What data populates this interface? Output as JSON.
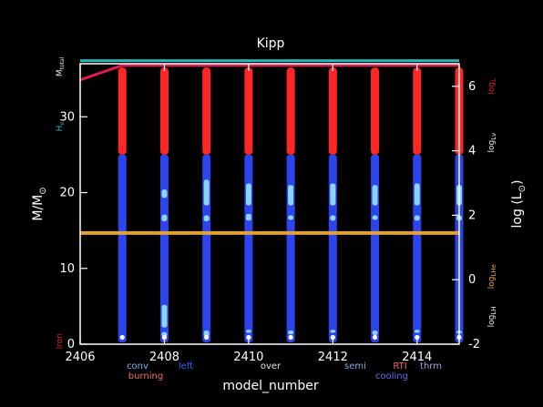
{
  "chart_data": {
    "type": "area",
    "title": "Kipp",
    "xlabel": "model_number",
    "ylabel_left": "M/M",
    "ylabel_left_sub": "⊙",
    "ylabel_right": "log (L",
    "ylabel_right_sub": "⊙",
    "ylabel_right_end": ")",
    "xlim": [
      2406,
      2415
    ],
    "ylim_left": [
      0,
      37
    ],
    "ylim_right": [
      -2,
      6.7
    ],
    "x_ticks": [
      "2406",
      "2408",
      "2410",
      "2412",
      "2414"
    ],
    "y_left_ticks": [
      "0",
      "10",
      "20",
      "30"
    ],
    "y_right_ticks": [
      "-2",
      "0",
      "2",
      "4",
      "6"
    ],
    "columns_x": [
      2407,
      2408,
      2409,
      2410,
      2411,
      2412,
      2413,
      2414,
      2415
    ],
    "columns": {
      "burning_red_top": 36.5,
      "burning_red_bottom": 25,
      "convective_blue_top": 25,
      "convective_blue_bottom": 0,
      "lightblue_segments": [
        [],
        [
          [
            19.3,
            20.4
          ],
          [
            16.2,
            17.1
          ],
          [
            2.2,
            5.2
          ],
          [
            1.0,
            1.6
          ]
        ],
        [
          [
            18.3,
            21.7
          ],
          [
            16.2,
            17.0
          ],
          [
            1.0,
            1.8
          ]
        ],
        [
          [
            18.3,
            21.2
          ],
          [
            16.3,
            17.2
          ],
          [
            1.5,
            1.9
          ]
        ],
        [
          [
            18.3,
            21.0
          ],
          [
            16.4,
            17.0
          ],
          [
            1.3,
            1.8
          ]
        ],
        [
          [
            18.3,
            21.2
          ],
          [
            16.3,
            17.0
          ],
          [
            1.5,
            1.9
          ]
        ],
        [
          [
            18.3,
            21.0
          ],
          [
            16.4,
            17.0
          ],
          [
            1.2,
            1.8
          ]
        ],
        [
          [
            18.3,
            21.2
          ],
          [
            16.3,
            17.0
          ],
          [
            1.5,
            1.9
          ]
        ],
        [
          [
            18.3,
            21.0
          ],
          [
            16.3,
            17.0
          ],
          [
            1.4,
            1.8
          ]
        ]
      ]
    },
    "series": [
      {
        "name": "M_total",
        "color": "#26b6b6",
        "x": [
          2406,
          2415
        ],
        "y": [
          37.4,
          37.4
        ],
        "axis": "left"
      },
      {
        "name": "log_L",
        "color": "#e01e4c",
        "x": [
          2406,
          2407,
          2415
        ],
        "y": [
          6.2,
          6.65,
          6.65
        ],
        "axis": "right"
      },
      {
        "name": "log_LHe",
        "color": "#e0a03c",
        "x": [
          2406,
          2415
        ],
        "y": [
          1.45,
          1.45
        ],
        "axis": "right"
      }
    ],
    "right_side_labels": [
      {
        "text": "log",
        "sub": "L",
        "color": "#e01e2c",
        "y": 6.0,
        "axis": "right"
      },
      {
        "text": "log",
        "sub": "Lν",
        "color": "#e8e8e8",
        "y": 4.25,
        "axis": "right"
      },
      {
        "text": "log",
        "sub": "LHe",
        "color": "#e0a03c",
        "y": 0.1,
        "axis": "right"
      },
      {
        "text": "log",
        "sub": "LH",
        "color": "#e8e8e8",
        "y": -1.15,
        "axis": "right"
      }
    ],
    "left_side_labels": [
      {
        "text": "M",
        "sub": "total",
        "color": "#e8e8e8",
        "y": 36.6
      },
      {
        "text": "H",
        "sub": "e",
        "color": "#26b6b6",
        "y": 28.7
      },
      {
        "text": "Iron",
        "sub": "",
        "color": "#e01e2c",
        "y": 0.4
      }
    ],
    "legend": [
      {
        "label": "conv",
        "color": "#6cb6f0",
        "row": 1
      },
      {
        "label": "burning",
        "color": "#e8705a",
        "row": 2
      },
      {
        "label": "left",
        "color": "#2a66f0",
        "row": 1
      },
      {
        "label": "over",
        "color": "#e8e8e8",
        "row": 1
      },
      {
        "label": "semi",
        "color": "#8aa6dc",
        "row": 1
      },
      {
        "label": "cooling",
        "color": "#6a66f0",
        "row": 2
      },
      {
        "label": "RTI",
        "color": "#e86a6a",
        "row": 1
      },
      {
        "label": "thrm",
        "color": "#b69ae0",
        "row": 1
      }
    ],
    "colors": {
      "background": "#000000",
      "axis": "#ffffff",
      "burning": "#ff2626",
      "convective": "#2c44ee",
      "lightblue": "#8ad4f6",
      "white_cap": "#ffffff"
    }
  }
}
